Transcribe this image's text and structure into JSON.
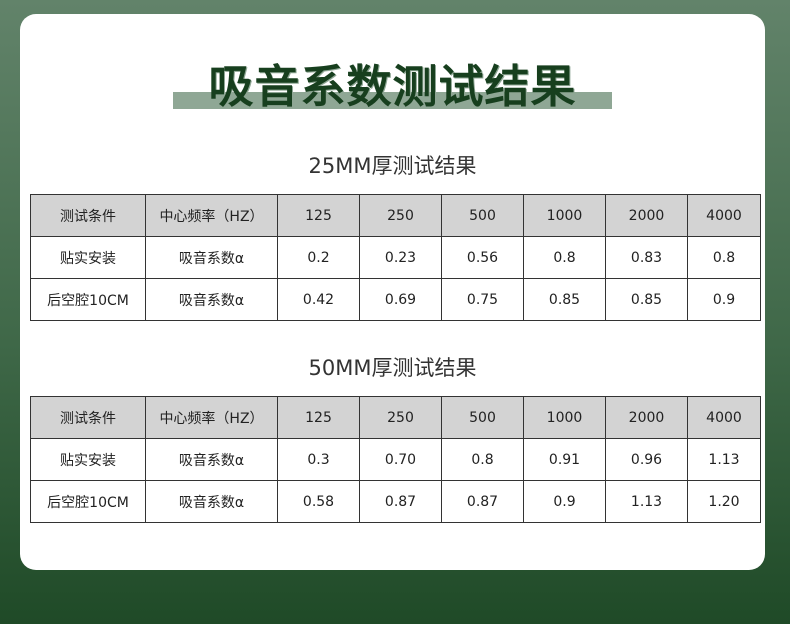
{
  "title": "吸音系数测试结果",
  "tables": [
    {
      "subtitle": "25MM厚测试结果",
      "header": [
        "测试条件",
        "中心频率（HZ）",
        "125",
        "250",
        "500",
        "1000",
        "2000",
        "4000"
      ],
      "rows": [
        [
          "贴实安装",
          "吸音系数α",
          "0.2",
          "0.23",
          "0.56",
          "0.8",
          "0.83",
          "0.8"
        ],
        [
          "后空腔10CM",
          "吸音系数α",
          "0.42",
          "0.69",
          "0.75",
          "0.85",
          "0.85",
          "0.9"
        ]
      ]
    },
    {
      "subtitle": "50MM厚测试结果",
      "header": [
        "测试条件",
        "中心频率（HZ）",
        "125",
        "250",
        "500",
        "1000",
        "2000",
        "4000"
      ],
      "rows": [
        [
          "贴实安装",
          "吸音系数α",
          "0.3",
          "0.70",
          "0.8",
          "0.91",
          "0.96",
          "1.13"
        ],
        [
          "后空腔10CM",
          "吸音系数α",
          "0.58",
          "0.87",
          "0.87",
          "0.9",
          "1.13",
          "1.20"
        ]
      ]
    }
  ]
}
